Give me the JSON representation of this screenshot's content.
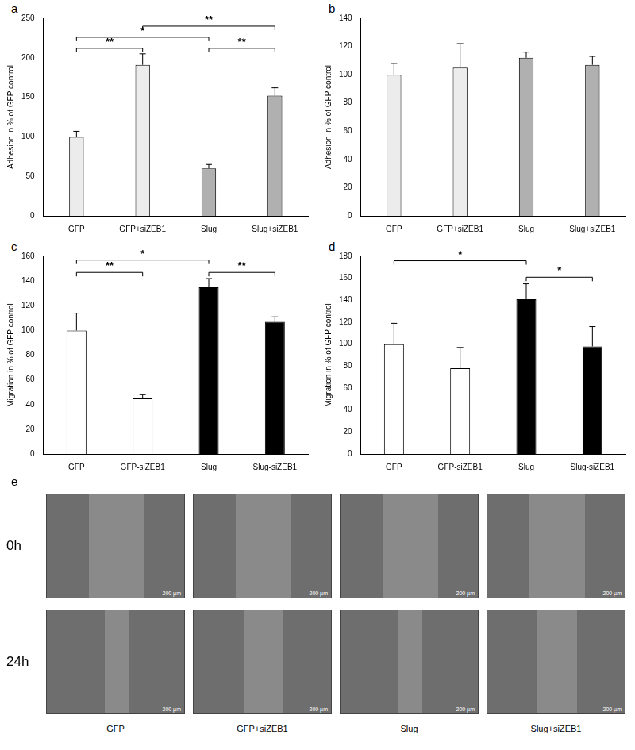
{
  "chart_data": [
    {
      "type": "bar",
      "panel": "a",
      "y_label": "Adhesion in % of GFP control",
      "categories": [
        "GFP",
        "GFP+siZEB1",
        "Slug",
        "Slug+siZEB1"
      ],
      "values": [
        100,
        191,
        60,
        152
      ],
      "errors": [
        7,
        14,
        5,
        10
      ],
      "colors": [
        "#ececec",
        "#ececec",
        "#b0b0b0",
        "#b0b0b0"
      ],
      "ylim": [
        0,
        250
      ],
      "yticks": [
        0,
        50,
        100,
        150,
        200,
        250
      ],
      "grid": false,
      "annotations": [
        {
          "from": 0,
          "to": 1,
          "label": "**",
          "y": 212
        },
        {
          "from": 2,
          "to": 3,
          "label": "**",
          "y": 212
        },
        {
          "from": 0,
          "to": 2,
          "label": "*",
          "y": 226
        },
        {
          "from": 1,
          "to": 3,
          "label": "**",
          "y": 240
        }
      ]
    },
    {
      "type": "bar",
      "panel": "b",
      "y_label": "Adhesion in % of GFP control",
      "categories": [
        "GFP",
        "GFP+siZEB1",
        "Slug",
        "Slug+siZEB1"
      ],
      "values": [
        100,
        105,
        112,
        107
      ],
      "errors": [
        8,
        17,
        4,
        6
      ],
      "colors": [
        "#ececec",
        "#ececec",
        "#b0b0b0",
        "#b0b0b0"
      ],
      "ylim": [
        0,
        140
      ],
      "yticks": [
        0,
        20,
        40,
        60,
        80,
        100,
        120,
        140
      ],
      "grid": false,
      "annotations": []
    },
    {
      "type": "bar",
      "panel": "c",
      "y_label": "Migration in % of GFP control",
      "categories": [
        "GFP",
        "GFP-siZEB1",
        "Slug",
        "Slug-siZEB1"
      ],
      "values": [
        100,
        45,
        135,
        107
      ],
      "errors": [
        14,
        3,
        7,
        4
      ],
      "colors": [
        "#ffffff",
        "#ffffff",
        "#000000",
        "#000000"
      ],
      "ylim": [
        0,
        160
      ],
      "yticks": [
        0,
        20,
        40,
        60,
        80,
        100,
        120,
        140,
        160
      ],
      "grid": false,
      "annotations": [
        {
          "from": 0,
          "to": 1,
          "label": "**",
          "y": 147
        },
        {
          "from": 2,
          "to": 3,
          "label": "**",
          "y": 147
        },
        {
          "from": 0,
          "to": 2,
          "label": "*",
          "y": 157
        }
      ]
    },
    {
      "type": "bar",
      "panel": "d",
      "y_label": "Migration in % of GFP control",
      "categories": [
        "GFP",
        "GFP-siZEB1",
        "Slug",
        "Slug-siZEB1"
      ],
      "values": [
        100,
        78,
        141,
        98
      ],
      "errors": [
        19,
        19,
        14,
        18
      ],
      "colors": [
        "#ffffff",
        "#ffffff",
        "#000000",
        "#000000"
      ],
      "ylim": [
        0,
        180
      ],
      "yticks": [
        0,
        20,
        40,
        60,
        80,
        100,
        120,
        140,
        160,
        180
      ],
      "grid": false,
      "annotations": [
        {
          "from": 2,
          "to": 3,
          "label": "*",
          "y": 161
        },
        {
          "from": 0,
          "to": 2,
          "label": "*",
          "y": 176
        }
      ]
    }
  ],
  "image_panel": {
    "panel": "e",
    "rows": [
      "0h",
      "24h"
    ],
    "columns": [
      "GFP",
      "GFP+siZEB1",
      "Slug",
      "Slug+siZEB1"
    ],
    "scale_bar": "200 µm"
  }
}
